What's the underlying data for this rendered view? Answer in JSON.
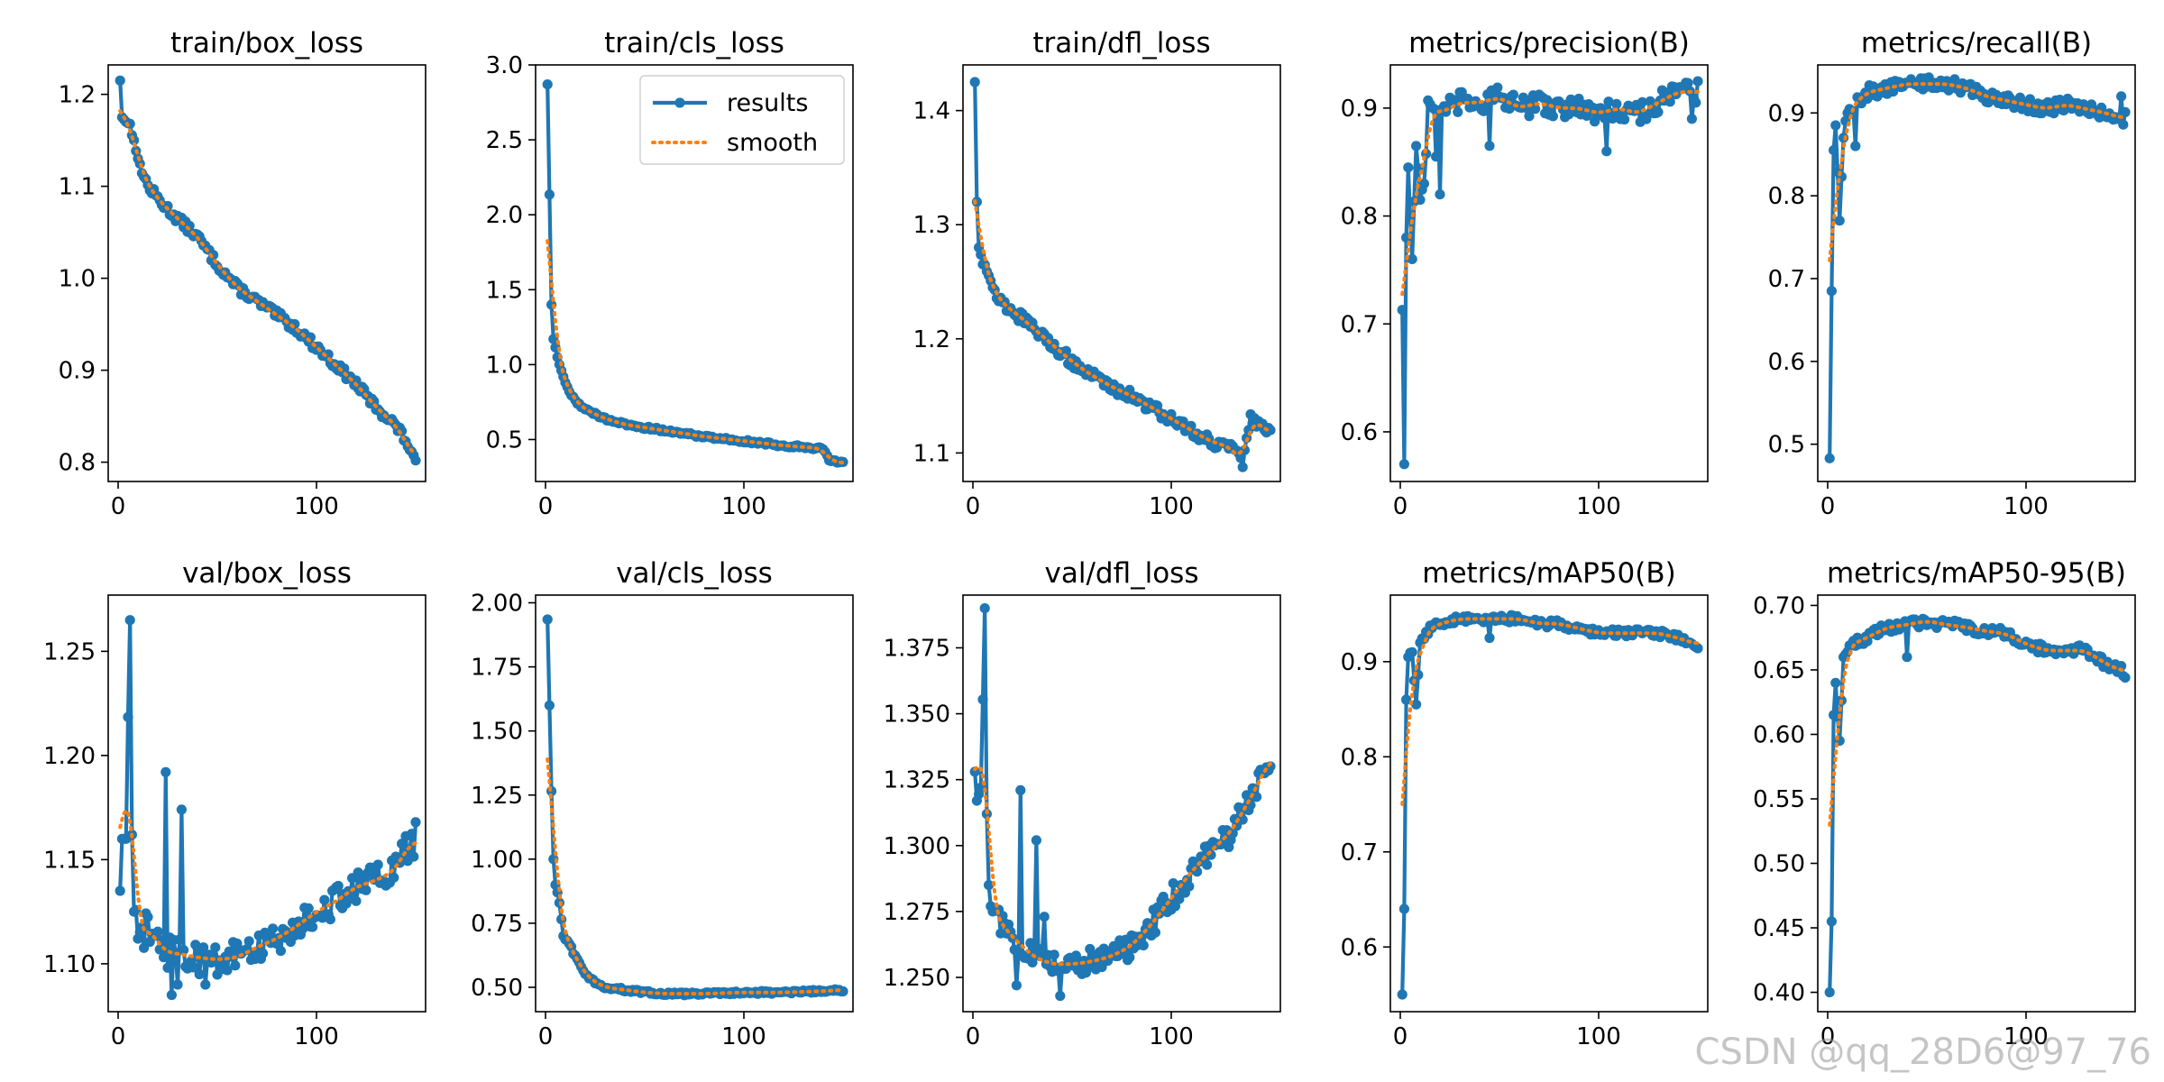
{
  "watermark": "CSDN @qq_28D6@97_76",
  "colors": {
    "results": "#1f77b4",
    "smooth": "#ff7f0e"
  },
  "legend": {
    "results_label": "results",
    "smooth_label": "smooth"
  },
  "chart_data": [
    {
      "id": "train_box_loss",
      "type": "line",
      "title": "train/box_loss",
      "xlim": [
        -5,
        155
      ],
      "ylim": [
        0.779,
        1.232
      ],
      "xticks": [
        0,
        100
      ],
      "yticks": [
        0.8,
        0.9,
        1.0,
        1.1,
        1.2
      ],
      "anchors": [
        [
          1,
          1.215
        ],
        [
          2,
          1.175
        ],
        [
          4,
          1.17
        ],
        [
          6,
          1.168
        ],
        [
          8,
          1.15
        ],
        [
          10,
          1.13
        ],
        [
          15,
          1.1
        ],
        [
          20,
          1.087
        ],
        [
          25,
          1.075
        ],
        [
          30,
          1.065
        ],
        [
          35,
          1.055
        ],
        [
          40,
          1.045
        ],
        [
          45,
          1.03
        ],
        [
          50,
          1.015
        ],
        [
          60,
          0.99
        ],
        [
          70,
          0.975
        ],
        [
          80,
          0.96
        ],
        [
          90,
          0.945
        ],
        [
          100,
          0.925
        ],
        [
          110,
          0.905
        ],
        [
          120,
          0.885
        ],
        [
          130,
          0.86
        ],
        [
          140,
          0.84
        ],
        [
          146,
          0.82
        ],
        [
          150,
          0.797
        ]
      ],
      "noise": 0.005,
      "spikes": []
    },
    {
      "id": "train_cls_loss",
      "type": "line",
      "title": "train/cls_loss",
      "xlim": [
        -5,
        155
      ],
      "ylim": [
        0.22,
        3.0
      ],
      "xticks": [
        0,
        100
      ],
      "yticks": [
        0.5,
        1.0,
        1.5,
        2.0,
        2.5,
        3.0
      ],
      "legend": true,
      "anchors": [
        [
          1,
          2.87
        ],
        [
          3,
          1.4
        ],
        [
          4,
          1.17
        ],
        [
          6,
          1.05
        ],
        [
          8,
          0.96
        ],
        [
          10,
          0.88
        ],
        [
          12,
          0.82
        ],
        [
          15,
          0.76
        ],
        [
          20,
          0.7
        ],
        [
          30,
          0.64
        ],
        [
          40,
          0.6
        ],
        [
          60,
          0.56
        ],
        [
          80,
          0.52
        ],
        [
          100,
          0.49
        ],
        [
          120,
          0.46
        ],
        [
          140,
          0.44
        ],
        [
          143,
          0.36
        ],
        [
          150,
          0.34
        ]
      ],
      "noise": 0.01,
      "spikes": []
    },
    {
      "id": "train_dfl_loss",
      "type": "line",
      "title": "train/dfl_loss",
      "xlim": [
        -5,
        155
      ],
      "ylim": [
        1.075,
        1.44
      ],
      "xticks": [
        0,
        100
      ],
      "yticks": [
        1.1,
        1.2,
        1.3,
        1.4
      ],
      "anchors": [
        [
          1,
          1.425
        ],
        [
          2,
          1.32
        ],
        [
          3,
          1.28
        ],
        [
          6,
          1.265
        ],
        [
          10,
          1.245
        ],
        [
          15,
          1.23
        ],
        [
          20,
          1.225
        ],
        [
          30,
          1.21
        ],
        [
          40,
          1.195
        ],
        [
          50,
          1.18
        ],
        [
          60,
          1.168
        ],
        [
          70,
          1.158
        ],
        [
          80,
          1.15
        ],
        [
          90,
          1.14
        ],
        [
          100,
          1.13
        ],
        [
          110,
          1.12
        ],
        [
          120,
          1.11
        ],
        [
          130,
          1.105
        ],
        [
          136,
          1.09
        ],
        [
          140,
          1.13
        ],
        [
          145,
          1.125
        ],
        [
          150,
          1.115
        ]
      ],
      "noise": 0.005,
      "spikes": []
    },
    {
      "id": "metrics_precision",
      "type": "line",
      "title": "metrics/precision(B)",
      "xlim": [
        -5,
        155
      ],
      "ylim": [
        0.554,
        0.94
      ],
      "xticks": [
        0,
        100
      ],
      "yticks": [
        0.6,
        0.7,
        0.8,
        0.9
      ],
      "anchors": [
        [
          1,
          0.713
        ],
        [
          2,
          0.57
        ],
        [
          3,
          0.78
        ],
        [
          4,
          0.845
        ],
        [
          6,
          0.76
        ],
        [
          8,
          0.865
        ],
        [
          10,
          0.815
        ],
        [
          12,
          0.83
        ],
        [
          14,
          0.9
        ],
        [
          20,
          0.895
        ],
        [
          25,
          0.9
        ],
        [
          30,
          0.905
        ],
        [
          40,
          0.905
        ],
        [
          50,
          0.91
        ],
        [
          60,
          0.9
        ],
        [
          70,
          0.905
        ],
        [
          80,
          0.9
        ],
        [
          90,
          0.9
        ],
        [
          100,
          0.895
        ],
        [
          110,
          0.9
        ],
        [
          120,
          0.895
        ],
        [
          130,
          0.905
        ],
        [
          140,
          0.915
        ],
        [
          150,
          0.915
        ]
      ],
      "noise": 0.01,
      "spikes": [
        [
          20,
          0.82
        ],
        [
          18,
          0.855
        ],
        [
          45,
          0.865
        ],
        [
          104,
          0.86
        ],
        [
          147,
          0.89
        ]
      ]
    },
    {
      "id": "metrics_recall",
      "type": "line",
      "title": "metrics/recall(B)",
      "xlim": [
        -5,
        155
      ],
      "ylim": [
        0.455,
        0.958
      ],
      "xticks": [
        0,
        100
      ],
      "yticks": [
        0.5,
        0.6,
        0.7,
        0.8,
        0.9
      ],
      "anchors": [
        [
          1,
          0.483
        ],
        [
          2,
          0.685
        ],
        [
          3,
          0.855
        ],
        [
          4,
          0.885
        ],
        [
          6,
          0.77
        ],
        [
          8,
          0.87
        ],
        [
          10,
          0.9
        ],
        [
          15,
          0.915
        ],
        [
          20,
          0.925
        ],
        [
          30,
          0.93
        ],
        [
          40,
          0.935
        ],
        [
          50,
          0.935
        ],
        [
          60,
          0.935
        ],
        [
          70,
          0.93
        ],
        [
          80,
          0.92
        ],
        [
          90,
          0.915
        ],
        [
          100,
          0.91
        ],
        [
          110,
          0.905
        ],
        [
          120,
          0.91
        ],
        [
          130,
          0.905
        ],
        [
          140,
          0.9
        ],
        [
          150,
          0.893
        ]
      ],
      "noise": 0.008,
      "spikes": [
        [
          14,
          0.86
        ],
        [
          148,
          0.92
        ]
      ]
    },
    {
      "id": "val_box_loss",
      "type": "line",
      "title": "val/box_loss",
      "xlim": [
        -5,
        155
      ],
      "ylim": [
        1.077,
        1.277
      ],
      "xticks": [
        0,
        100
      ],
      "yticks": [
        1.1,
        1.15,
        1.2,
        1.25
      ],
      "anchors": [
        [
          1,
          1.135
        ],
        [
          2,
          1.16
        ],
        [
          4,
          1.16
        ],
        [
          6,
          1.265
        ],
        [
          7,
          1.162
        ],
        [
          8,
          1.125
        ],
        [
          10,
          1.112
        ],
        [
          15,
          1.118
        ],
        [
          20,
          1.11
        ],
        [
          25,
          1.105
        ],
        [
          30,
          1.105
        ],
        [
          40,
          1.103
        ],
        [
          50,
          1.102
        ],
        [
          60,
          1.103
        ],
        [
          70,
          1.108
        ],
        [
          80,
          1.112
        ],
        [
          90,
          1.118
        ],
        [
          100,
          1.125
        ],
        [
          110,
          1.13
        ],
        [
          120,
          1.137
        ],
        [
          130,
          1.14
        ],
        [
          140,
          1.145
        ],
        [
          145,
          1.155
        ],
        [
          150,
          1.16
        ]
      ],
      "noise": 0.008,
      "spikes": [
        [
          24,
          1.192
        ],
        [
          27,
          1.085
        ],
        [
          32,
          1.174
        ],
        [
          30,
          1.09
        ],
        [
          44,
          1.09
        ]
      ]
    },
    {
      "id": "val_cls_loss",
      "type": "line",
      "title": "val/cls_loss",
      "xlim": [
        -5,
        155
      ],
      "ylim": [
        0.405,
        2.03
      ],
      "xticks": [
        0,
        100
      ],
      "yticks": [
        0.5,
        0.75,
        1.0,
        1.25,
        1.5,
        1.75,
        2.0
      ],
      "anchors": [
        [
          1,
          1.935
        ],
        [
          3,
          1.265
        ],
        [
          4,
          1.0
        ],
        [
          5,
          0.9
        ],
        [
          7,
          0.83
        ],
        [
          9,
          0.7
        ],
        [
          12,
          0.67
        ],
        [
          15,
          0.62
        ],
        [
          20,
          0.55
        ],
        [
          25,
          0.52
        ],
        [
          30,
          0.5
        ],
        [
          40,
          0.49
        ],
        [
          50,
          0.48
        ],
        [
          60,
          0.475
        ],
        [
          80,
          0.475
        ],
        [
          100,
          0.48
        ],
        [
          120,
          0.48
        ],
        [
          140,
          0.485
        ],
        [
          150,
          0.49
        ]
      ],
      "noise": 0.006,
      "spikes": []
    },
    {
      "id": "val_dfl_loss",
      "type": "line",
      "title": "val/dfl_loss",
      "xlim": [
        -5,
        155
      ],
      "ylim": [
        1.237,
        1.395
      ],
      "xticks": [
        0,
        100
      ],
      "yticks": [
        1.25,
        1.275,
        1.3,
        1.325,
        1.35,
        1.375
      ],
      "anchors": [
        [
          1,
          1.328
        ],
        [
          2,
          1.317
        ],
        [
          4,
          1.322
        ],
        [
          6,
          1.39
        ],
        [
          7,
          1.312
        ],
        [
          8,
          1.285
        ],
        [
          10,
          1.275
        ],
        [
          15,
          1.27
        ],
        [
          20,
          1.265
        ],
        [
          25,
          1.262
        ],
        [
          30,
          1.258
        ],
        [
          40,
          1.255
        ],
        [
          50,
          1.255
        ],
        [
          60,
          1.256
        ],
        [
          70,
          1.258
        ],
        [
          80,
          1.262
        ],
        [
          90,
          1.27
        ],
        [
          100,
          1.28
        ],
        [
          110,
          1.29
        ],
        [
          120,
          1.298
        ],
        [
          130,
          1.305
        ],
        [
          140,
          1.318
        ],
        [
          145,
          1.325
        ],
        [
          150,
          1.335
        ]
      ],
      "noise": 0.005,
      "spikes": [
        [
          24,
          1.321
        ],
        [
          32,
          1.302
        ],
        [
          22,
          1.247
        ],
        [
          44,
          1.243
        ],
        [
          36,
          1.273
        ]
      ]
    },
    {
      "id": "metrics_map50",
      "type": "line",
      "title": "metrics/mAP50(B)",
      "xlim": [
        -5,
        155
      ],
      "ylim": [
        0.532,
        0.97
      ],
      "xticks": [
        0,
        100
      ],
      "yticks": [
        0.6,
        0.7,
        0.8,
        0.9
      ],
      "anchors": [
        [
          1,
          0.55
        ],
        [
          2,
          0.64
        ],
        [
          3,
          0.86
        ],
        [
          4,
          0.905
        ],
        [
          6,
          0.91
        ],
        [
          8,
          0.855
        ],
        [
          10,
          0.92
        ],
        [
          15,
          0.935
        ],
        [
          20,
          0.94
        ],
        [
          30,
          0.945
        ],
        [
          40,
          0.945
        ],
        [
          50,
          0.945
        ],
        [
          60,
          0.945
        ],
        [
          70,
          0.94
        ],
        [
          80,
          0.94
        ],
        [
          90,
          0.935
        ],
        [
          100,
          0.93
        ],
        [
          110,
          0.93
        ],
        [
          120,
          0.93
        ],
        [
          130,
          0.93
        ],
        [
          140,
          0.925
        ],
        [
          150,
          0.918
        ]
      ],
      "noise": 0.004,
      "spikes": [
        [
          45,
          0.925
        ]
      ]
    },
    {
      "id": "metrics_map50_95",
      "type": "line",
      "title": "metrics/mAP50-95(B)",
      "xlim": [
        -5,
        155
      ],
      "ylim": [
        0.385,
        0.708
      ],
      "xticks": [
        0,
        100
      ],
      "yticks": [
        0.4,
        0.45,
        0.5,
        0.55,
        0.6,
        0.65,
        0.7
      ],
      "anchors": [
        [
          1,
          0.4
        ],
        [
          2,
          0.455
        ],
        [
          3,
          0.615
        ],
        [
          4,
          0.64
        ],
        [
          6,
          0.595
        ],
        [
          8,
          0.66
        ],
        [
          12,
          0.67
        ],
        [
          20,
          0.675
        ],
        [
          30,
          0.683
        ],
        [
          40,
          0.685
        ],
        [
          50,
          0.688
        ],
        [
          60,
          0.685
        ],
        [
          70,
          0.683
        ],
        [
          80,
          0.68
        ],
        [
          90,
          0.678
        ],
        [
          100,
          0.67
        ],
        [
          110,
          0.665
        ],
        [
          120,
          0.665
        ],
        [
          130,
          0.665
        ],
        [
          140,
          0.655
        ],
        [
          150,
          0.648
        ]
      ],
      "noise": 0.004,
      "spikes": [
        [
          40,
          0.66
        ]
      ]
    }
  ]
}
